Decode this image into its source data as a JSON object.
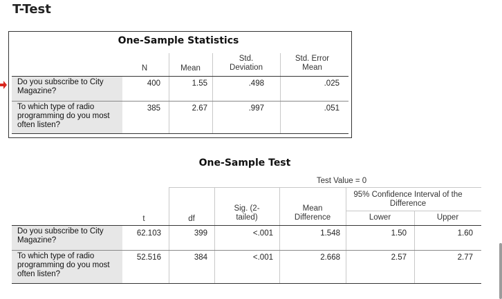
{
  "page_title": "T-Test",
  "stats": {
    "title": "One-Sample Statistics",
    "headers": {
      "n": "N",
      "mean": "Mean",
      "std1": "Std.",
      "std2": "Deviation",
      "se1": "Std. Error",
      "se2": "Mean"
    },
    "rows": [
      {
        "label": "Do you subscribe to City Magazine?",
        "n": "400",
        "mean": "1.55",
        "sd": ".498",
        "se": ".025"
      },
      {
        "label": "To which type of radio programming do you most often listen?",
        "n": "385",
        "mean": "2.67",
        "sd": ".997",
        "se": ".051"
      }
    ]
  },
  "test": {
    "title": "One-Sample Test",
    "test_value": "Test Value = 0",
    "ci_header": "95% Confidence Interval of the Difference",
    "headers": {
      "t": "t",
      "df": "df",
      "sig1": "Sig. (2-",
      "sig2": "tailed)",
      "md1": "Mean",
      "md2": "Difference",
      "lower": "Lower",
      "upper": "Upper"
    },
    "rows": [
      {
        "label": "Do you subscribe to City Magazine?",
        "t": "62.103",
        "df": "399",
        "sig": "<.001",
        "md": "1.548",
        "lower": "1.50",
        "upper": "1.60"
      },
      {
        "label": "To which type of radio programming do you most often listen?",
        "t": "52.516",
        "df": "384",
        "sig": "<.001",
        "md": "2.668",
        "lower": "2.57",
        "upper": "2.77"
      }
    ]
  }
}
